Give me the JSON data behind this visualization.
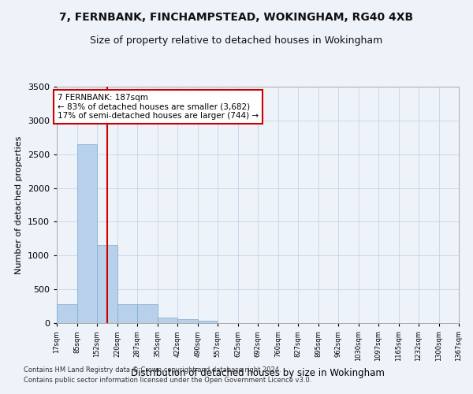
{
  "title": "7, FERNBANK, FINCHAMPSTEAD, WOKINGHAM, RG40 4XB",
  "subtitle": "Size of property relative to detached houses in Wokingham",
  "xlabel": "Distribution of detached houses by size in Wokingham",
  "ylabel": "Number of detached properties",
  "bar_color": "#b8d0ea",
  "bar_edge_color": "#7aafd4",
  "background_color": "#eef2f9",
  "annotation_text": "7 FERNBANK: 187sqm\n← 83% of detached houses are smaller (3,682)\n17% of semi-detached houses are larger (744) →",
  "vline_x": 187,
  "vline_color": "#cc0000",
  "footer1": "Contains HM Land Registry data © Crown copyright and database right 2024.",
  "footer2": "Contains public sector information licensed under the Open Government Licence v3.0.",
  "bin_edges": [
    17,
    85,
    152,
    220,
    287,
    355,
    422,
    490,
    557,
    625,
    692,
    760,
    827,
    895,
    962,
    1030,
    1097,
    1165,
    1232,
    1300,
    1367
  ],
  "bin_counts": [
    280,
    2650,
    1150,
    280,
    280,
    85,
    55,
    35,
    0,
    0,
    0,
    0,
    0,
    0,
    0,
    0,
    0,
    0,
    0,
    0
  ],
  "ylim": [
    0,
    3500
  ],
  "yticks": [
    0,
    500,
    1000,
    1500,
    2000,
    2500,
    3000,
    3500
  ],
  "annotation_box_color": "#ffffff",
  "annotation_box_edge": "#cc0000",
  "grid_color": "#c8d4e8",
  "title_fontsize": 10,
  "subtitle_fontsize": 9,
  "ylabel_fontsize": 8,
  "xlabel_fontsize": 8.5,
  "ytick_fontsize": 8,
  "xtick_fontsize": 6,
  "annotation_fontsize": 7.5,
  "footer_fontsize": 6
}
